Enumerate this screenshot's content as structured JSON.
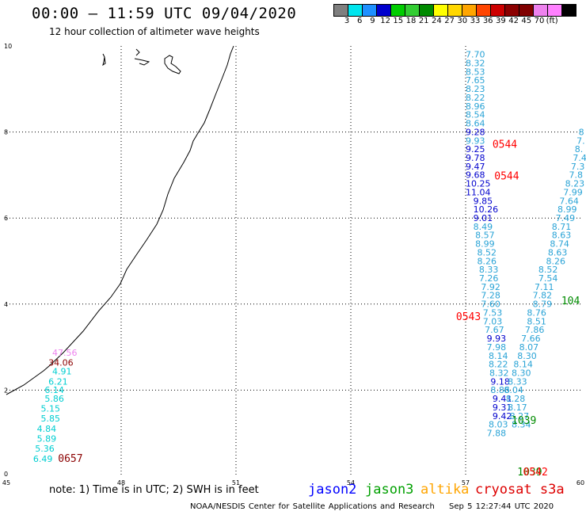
{
  "header": {
    "title": "00:00 – 11:59 UTC 09/04/2020",
    "subtitle": "12 hour collection of altimeter wave heights"
  },
  "colorbar": {
    "unit": "(ft)",
    "labels": [
      "3",
      "6",
      "9",
      "12",
      "15",
      "18",
      "21",
      "24",
      "27",
      "30",
      "33",
      "36",
      "39",
      "42",
      "45",
      "70"
    ],
    "colors": [
      "#7f7f7f",
      "#00e5ee",
      "#1e90ff",
      "#0000cd",
      "#00cd00",
      "#32cd32",
      "#008b00",
      "#ffff00",
      "#ffd700",
      "#ffa500",
      "#ff4500",
      "#cd0000",
      "#8b0000",
      "#800000",
      "#ee82ee",
      "#ff80ff",
      "#000000"
    ]
  },
  "chart_data": {
    "type": "map",
    "axes": {
      "x_ticks": [
        "45",
        "48",
        "51",
        "54",
        "57",
        "60"
      ],
      "y_ticks": [
        "0",
        "2",
        "4",
        "6",
        "8",
        "10"
      ],
      "xlim": [
        45,
        60
      ],
      "ylim": [
        0,
        10
      ]
    },
    "wave_labels": [
      {
        "x": 57.0,
        "y": 9.73,
        "v": "7.70",
        "c": "#29a3d6"
      },
      {
        "x": 57.0,
        "y": 9.53,
        "v": "8.32",
        "c": "#29a3d6"
      },
      {
        "x": 57.0,
        "y": 9.33,
        "v": "8.53",
        "c": "#29a3d6"
      },
      {
        "x": 57.0,
        "y": 9.13,
        "v": "7.65",
        "c": "#29a3d6"
      },
      {
        "x": 57.0,
        "y": 8.93,
        "v": "8.23",
        "c": "#29a3d6"
      },
      {
        "x": 57.0,
        "y": 8.73,
        "v": "8.22",
        "c": "#29a3d6"
      },
      {
        "x": 57.0,
        "y": 8.53,
        "v": "8.96",
        "c": "#29a3d6"
      },
      {
        "x": 57.0,
        "y": 8.33,
        "v": "8.54",
        "c": "#29a3d6"
      },
      {
        "x": 57.0,
        "y": 8.13,
        "v": "8.64",
        "c": "#29a3d6"
      },
      {
        "x": 57.0,
        "y": 7.93,
        "v": "9.28",
        "c": "#0000cd"
      },
      {
        "x": 57.0,
        "y": 7.73,
        "v": "9.93",
        "c": "#29a3d6"
      },
      {
        "x": 57.0,
        "y": 7.53,
        "v": "9.25",
        "c": "#0000cd"
      },
      {
        "x": 57.0,
        "y": 7.33,
        "v": "9.78",
        "c": "#0000cd"
      },
      {
        "x": 57.0,
        "y": 7.13,
        "v": "9.47",
        "c": "#0000cd"
      },
      {
        "x": 57.0,
        "y": 6.93,
        "v": "9.68",
        "c": "#0000cd"
      },
      {
        "x": 57.0,
        "y": 6.73,
        "v": "10.25",
        "c": "#0000cd"
      },
      {
        "x": 57.0,
        "y": 6.53,
        "v": "11.04",
        "c": "#0000cd"
      },
      {
        "x": 57.2,
        "y": 6.33,
        "v": "9.85",
        "c": "#0000cd"
      },
      {
        "x": 57.2,
        "y": 6.13,
        "v": "10.26",
        "c": "#0000cd"
      },
      {
        "x": 57.2,
        "y": 5.93,
        "v": "9.01",
        "c": "#0000cd"
      },
      {
        "x": 57.2,
        "y": 5.73,
        "v": "8.49",
        "c": "#29a3d6"
      },
      {
        "x": 57.25,
        "y": 5.53,
        "v": "8.57",
        "c": "#29a3d6"
      },
      {
        "x": 57.25,
        "y": 5.33,
        "v": "8.99",
        "c": "#29a3d6"
      },
      {
        "x": 57.3,
        "y": 5.13,
        "v": "8.52",
        "c": "#29a3d6"
      },
      {
        "x": 57.3,
        "y": 4.93,
        "v": "8.26",
        "c": "#29a3d6"
      },
      {
        "x": 57.35,
        "y": 4.73,
        "v": "8.33",
        "c": "#29a3d6"
      },
      {
        "x": 57.35,
        "y": 4.53,
        "v": "7.26",
        "c": "#29a3d6"
      },
      {
        "x": 57.4,
        "y": 4.33,
        "v": "7.92",
        "c": "#29a3d6"
      },
      {
        "x": 57.4,
        "y": 4.13,
        "v": "7.28",
        "c": "#29a3d6"
      },
      {
        "x": 57.4,
        "y": 3.93,
        "v": "7.60",
        "c": "#29a3d6"
      },
      {
        "x": 57.45,
        "y": 3.73,
        "v": "7.53",
        "c": "#29a3d6"
      },
      {
        "x": 57.45,
        "y": 3.53,
        "v": "7.03",
        "c": "#29a3d6"
      },
      {
        "x": 57.5,
        "y": 3.33,
        "v": "7.67",
        "c": "#29a3d6"
      },
      {
        "x": 57.55,
        "y": 3.13,
        "v": "9.93",
        "c": "#0000cd"
      },
      {
        "x": 57.55,
        "y": 2.93,
        "v": "7.98",
        "c": "#29a3d6"
      },
      {
        "x": 57.6,
        "y": 2.73,
        "v": "8.14",
        "c": "#29a3d6"
      },
      {
        "x": 57.6,
        "y": 2.53,
        "v": "8.22",
        "c": "#29a3d6"
      },
      {
        "x": 57.62,
        "y": 2.33,
        "v": "8.32",
        "c": "#29a3d6"
      },
      {
        "x": 57.65,
        "y": 2.13,
        "v": "9.18",
        "c": "#0000cd"
      },
      {
        "x": 57.65,
        "y": 1.93,
        "v": "8.86",
        "c": "#29a3d6"
      },
      {
        "x": 57.7,
        "y": 1.73,
        "v": "9.41",
        "c": "#0000cd"
      },
      {
        "x": 57.7,
        "y": 1.53,
        "v": "9.31",
        "c": "#0000cd"
      },
      {
        "x": 57.7,
        "y": 1.33,
        "v": "9.42",
        "c": "#0000cd"
      },
      {
        "x": 57.6,
        "y": 1.13,
        "v": "8.03",
        "c": "#29a3d6"
      },
      {
        "x": 57.55,
        "y": 0.93,
        "v": "7.88",
        "c": "#29a3d6"
      },
      {
        "x": 58.2,
        "y": 1.13,
        "v": "8.34",
        "c": "#29a3d6"
      },
      {
        "x": 58.15,
        "y": 1.33,
        "v": "8.27",
        "c": "#29a3d6"
      },
      {
        "x": 58.1,
        "y": 1.53,
        "v": "8.17",
        "c": "#29a3d6"
      },
      {
        "x": 58.05,
        "y": 1.73,
        "v": "8.28",
        "c": "#29a3d6"
      },
      {
        "x": 58.0,
        "y": 1.93,
        "v": "8.04",
        "c": "#29a3d6"
      },
      {
        "x": 58.1,
        "y": 2.13,
        "v": "8.33",
        "c": "#29a3d6"
      },
      {
        "x": 58.2,
        "y": 2.33,
        "v": "8.30",
        "c": "#29a3d6"
      },
      {
        "x": 58.25,
        "y": 2.53,
        "v": "8.14",
        "c": "#29a3d6"
      },
      {
        "x": 58.35,
        "y": 2.73,
        "v": "8.30",
        "c": "#29a3d6"
      },
      {
        "x": 58.4,
        "y": 2.93,
        "v": "8.07",
        "c": "#29a3d6"
      },
      {
        "x": 58.45,
        "y": 3.13,
        "v": "7.66",
        "c": "#29a3d6"
      },
      {
        "x": 58.55,
        "y": 3.33,
        "v": "7.86",
        "c": "#29a3d6"
      },
      {
        "x": 58.6,
        "y": 3.53,
        "v": "8.51",
        "c": "#29a3d6"
      },
      {
        "x": 58.6,
        "y": 3.73,
        "v": "8.76",
        "c": "#29a3d6"
      },
      {
        "x": 58.75,
        "y": 3.93,
        "v": "8.79",
        "c": "#29a3d6"
      },
      {
        "x": 58.75,
        "y": 4.13,
        "v": "7.82",
        "c": "#29a3d6"
      },
      {
        "x": 58.8,
        "y": 4.33,
        "v": "7.11",
        "c": "#29a3d6"
      },
      {
        "x": 58.9,
        "y": 4.53,
        "v": "7.54",
        "c": "#29a3d6"
      },
      {
        "x": 58.9,
        "y": 4.73,
        "v": "8.52",
        "c": "#29a3d6"
      },
      {
        "x": 59.1,
        "y": 4.93,
        "v": "8.26",
        "c": "#29a3d6"
      },
      {
        "x": 59.15,
        "y": 5.13,
        "v": "8.63",
        "c": "#29a3d6"
      },
      {
        "x": 59.2,
        "y": 5.33,
        "v": "8.74",
        "c": "#29a3d6"
      },
      {
        "x": 59.25,
        "y": 5.53,
        "v": "8.63",
        "c": "#29a3d6"
      },
      {
        "x": 59.25,
        "y": 5.73,
        "v": "8.71",
        "c": "#29a3d6"
      },
      {
        "x": 59.35,
        "y": 5.93,
        "v": "7.49",
        "c": "#29a3d6"
      },
      {
        "x": 59.4,
        "y": 6.13,
        "v": "8.99",
        "c": "#29a3d6"
      },
      {
        "x": 59.45,
        "y": 6.33,
        "v": "7.64",
        "c": "#29a3d6"
      },
      {
        "x": 59.55,
        "y": 6.53,
        "v": "7.99",
        "c": "#29a3d6"
      },
      {
        "x": 59.6,
        "y": 6.73,
        "v": "8.23",
        "c": "#29a3d6"
      },
      {
        "x": 59.7,
        "y": 6.93,
        "v": "7.8",
        "c": "#29a3d6"
      },
      {
        "x": 59.75,
        "y": 7.13,
        "v": "7.3",
        "c": "#29a3d6"
      },
      {
        "x": 59.8,
        "y": 7.33,
        "v": "7.4",
        "c": "#29a3d6"
      },
      {
        "x": 59.85,
        "y": 7.53,
        "v": "8.",
        "c": "#29a3d6"
      },
      {
        "x": 59.9,
        "y": 7.73,
        "v": "7.",
        "c": "#29a3d6"
      },
      {
        "x": 59.95,
        "y": 7.93,
        "v": "8",
        "c": "#29a3d6"
      },
      {
        "x": 46.2,
        "y": 2.8,
        "v": "47.56",
        "c": "#ee82ee"
      },
      {
        "x": 46.1,
        "y": 2.57,
        "v": "34.06",
        "c": "#8b0000"
      },
      {
        "x": 46.2,
        "y": 2.37,
        "v": "4.91",
        "c": "#00ced1"
      },
      {
        "x": 46.1,
        "y": 2.13,
        "v": "6.21",
        "c": "#00ced1"
      },
      {
        "x": 46.0,
        "y": 1.93,
        "v": "6.14",
        "c": "#00ced1"
      },
      {
        "x": 46.0,
        "y": 1.73,
        "v": "5.86",
        "c": "#00ced1"
      },
      {
        "x": 45.9,
        "y": 1.5,
        "v": "5.15",
        "c": "#00ced1"
      },
      {
        "x": 45.9,
        "y": 1.27,
        "v": "5.85",
        "c": "#00ced1"
      },
      {
        "x": 45.8,
        "y": 1.03,
        "v": "4.84",
        "c": "#00ced1"
      },
      {
        "x": 45.8,
        "y": 0.8,
        "v": "5.89",
        "c": "#00ced1"
      },
      {
        "x": 45.75,
        "y": 0.57,
        "v": "5.36",
        "c": "#00ced1"
      },
      {
        "x": 45.7,
        "y": 0.33,
        "v": "6.49",
        "c": "#00ced1"
      }
    ],
    "time_labels": [
      {
        "x": 57.7,
        "y": 7.63,
        "v": "0544",
        "c": "#ff0000"
      },
      {
        "x": 57.75,
        "y": 6.9,
        "v": "0544",
        "c": "#ff0000"
      },
      {
        "x": 56.75,
        "y": 3.63,
        "v": "0543",
        "c": "#ff0000"
      },
      {
        "x": 46.35,
        "y": 0.33,
        "v": "0657",
        "c": "#8b0000"
      },
      {
        "x": 58.2,
        "y": 1.22,
        "v": "1039",
        "c": "#008b00"
      },
      {
        "x": 58.35,
        "y": 0.02,
        "v": "1039",
        "c": "#008b00"
      },
      {
        "x": 58.5,
        "y": 0.02,
        "v": "0542",
        "c": "#ff0000"
      },
      {
        "x": 59.5,
        "y": 4.0,
        "v": "104",
        "c": "#008b00"
      }
    ]
  },
  "note": "note: 1) Time is in UTC; 2) SWH is in feet",
  "satellites": [
    {
      "name": "jason2",
      "color": "#0000ff"
    },
    {
      "name": "jason3",
      "color": "#00a000"
    },
    {
      "name": "altika",
      "color": "#ffa500"
    },
    {
      "name": "cryosat s3a",
      "color": "#dd0000"
    }
  ],
  "footer": {
    "credit": "NOAA/NESDIS Center for Satellite Applications and Research",
    "timestamp": "Sep  5 12:27:44 UTC 2020"
  }
}
